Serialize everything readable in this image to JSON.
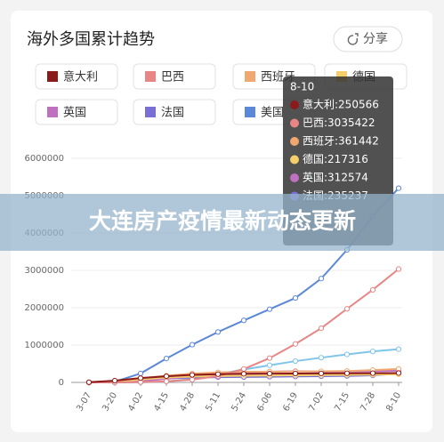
{
  "chart_data": {
    "type": "line",
    "title": "海外多国累计趋势",
    "share": "分享",
    "categories": [
      "3-07",
      "3-20",
      "4-02",
      "4-15",
      "4-28",
      "5-11",
      "5-24",
      "6-06",
      "6-19",
      "7-02",
      "7-15",
      "7-28",
      "8-10"
    ],
    "series": [
      {
        "name": "意大利",
        "color": "#8b1a1a",
        "values": [
          4600,
          47000,
          115000,
          165000,
          201000,
          220000,
          230000,
          235000,
          238000,
          241000,
          244000,
          247000,
          250566
        ]
      },
      {
        "name": "巴西",
        "color": "#e88585",
        "values": [
          0,
          0,
          8000,
          28000,
          73000,
          170000,
          360000,
          650000,
          1030000,
          1450000,
          1970000,
          2480000,
          3035422
        ]
      },
      {
        "name": "西班牙",
        "color": "#f0a870",
        "values": [
          400,
          30000,
          113000,
          178000,
          236000,
          268000,
          282000,
          288000,
          292000,
          297000,
          305000,
          330000,
          361442
        ]
      },
      {
        "name": "德国",
        "color": "#f5cf6a",
        "values": [
          800,
          16000,
          77000,
          130000,
          159000,
          171000,
          179000,
          184000,
          189000,
          195000,
          201000,
          208000,
          217316
        ]
      },
      {
        "name": "英国",
        "color": "#c070c0",
        "values": [
          160,
          3900,
          34000,
          94000,
          157000,
          220000,
          260000,
          285000,
          300000,
          285000,
          292000,
          300000,
          312574
        ]
      },
      {
        "name": "法国",
        "color": "#7a6fd6",
        "values": [
          950,
          9000,
          59000,
          106000,
          128000,
          140000,
          145000,
          153000,
          160000,
          166000,
          174000,
          189000,
          235237
        ]
      },
      {
        "name": "美国",
        "color": "#5b88d8",
        "values": [
          0,
          20000,
          240000,
          640000,
          1010000,
          1350000,
          1660000,
          1960000,
          2260000,
          2780000,
          3550000,
          4450000,
          5200000
        ]
      },
      {
        "color": "#80c4ea",
        "values": [
          0,
          0,
          4000,
          25000,
          94000,
          222000,
          345000,
          459000,
          570000,
          662000,
          750000,
          830000,
          890000
        ]
      }
    ],
    "ylim": [
      0,
      6000000
    ],
    "yticks": [
      0,
      1000000,
      2000000,
      3000000,
      4000000,
      5000000,
      6000000
    ],
    "tooltip": {
      "title": "8-10",
      "items": [
        "意大利:250566",
        "巴西:3035422",
        "西班牙:361442",
        "德国:217316",
        "英国:312574",
        "法国:235237"
      ]
    },
    "banner": "大连房产疫情最新动态更新"
  }
}
